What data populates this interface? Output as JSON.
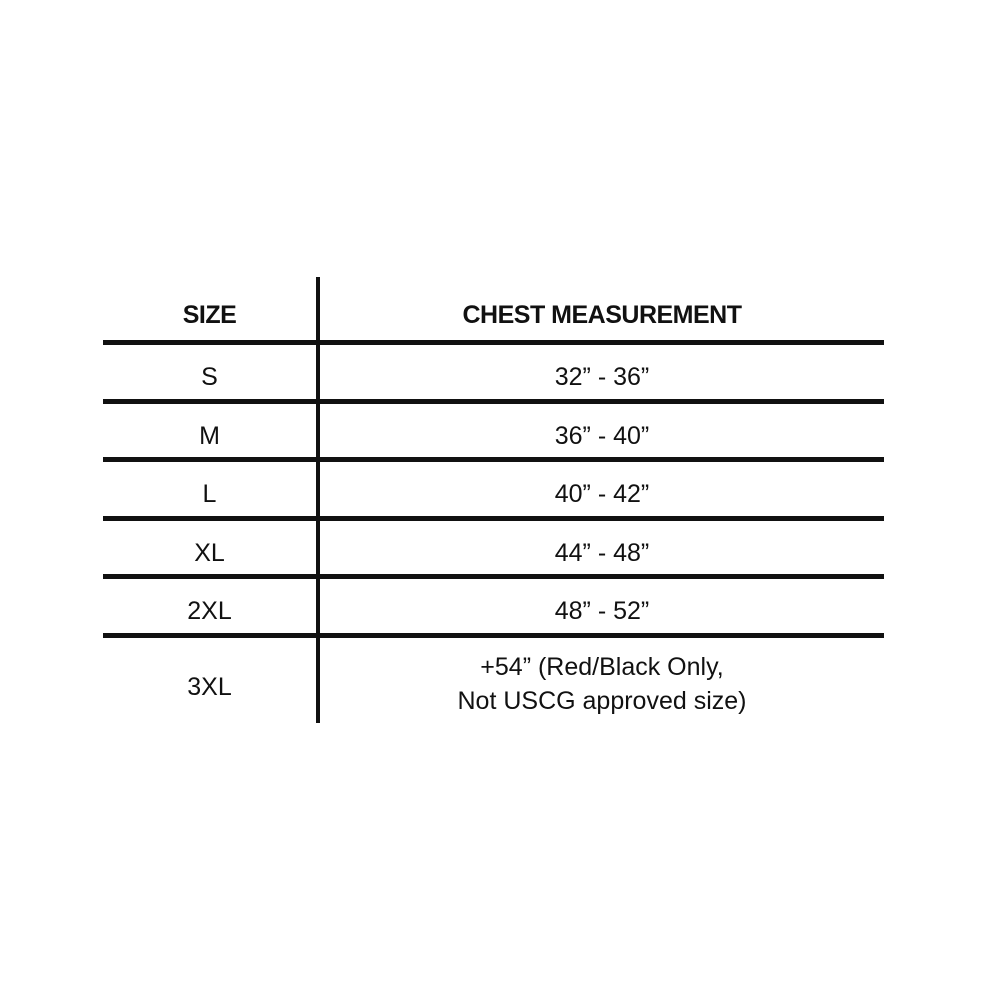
{
  "headers": {
    "size": "SIZE",
    "chest": "CHEST MEASUREMENT"
  },
  "rows": [
    {
      "size": "S",
      "chest": "32” - 36”"
    },
    {
      "size": "M",
      "chest": "36” - 40”"
    },
    {
      "size": "L",
      "chest": "40” - 42”"
    },
    {
      "size": "XL",
      "chest": "44” - 48”"
    },
    {
      "size": "2XL",
      "chest": "48” - 52”"
    },
    {
      "size": "3XL",
      "chest": "+54” (Red/Black Only,",
      "chest_line2": "Not USCG approved size)"
    }
  ]
}
